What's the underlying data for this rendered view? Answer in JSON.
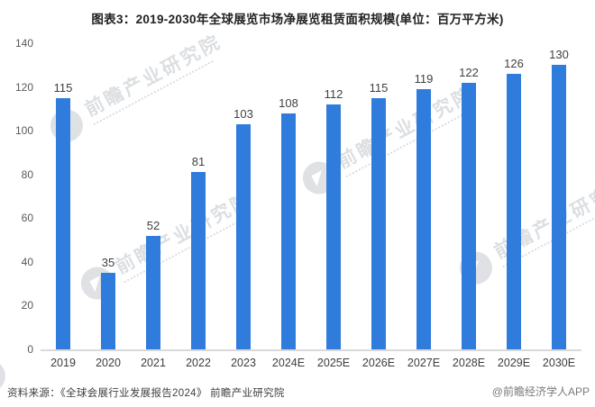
{
  "chart_data": {
    "type": "bar",
    "title": "图表3：2019-2030年全球展览市场净展览租赁面积规模(单位：百万平方米)",
    "categories": [
      "2019",
      "2020",
      "2021",
      "2022",
      "2023",
      "2024E",
      "2025E",
      "2026E",
      "2027E",
      "2028E",
      "2029E",
      "2030E"
    ],
    "values": [
      115,
      35,
      52,
      81,
      103,
      108,
      112,
      115,
      119,
      122,
      126,
      130
    ],
    "unit": "百万平方米",
    "xlabel": "",
    "ylabel": "",
    "ylim": [
      0,
      140
    ],
    "yticks": [
      0,
      20,
      40,
      60,
      80,
      100,
      120,
      140
    ],
    "grid": false,
    "legend": null,
    "bar_color": "#2F7CDC",
    "value_label_color": "#404040",
    "axis_label_color": "#595959",
    "axis_line_color": "#D9D9D9"
  },
  "watermark": {
    "text": "前瞻产业研究院",
    "logo_glyph": "◤"
  },
  "footer": {
    "source": "资料来源：《全球会展行业发展报告2024》 前瞻产业研究院",
    "credit": "@前瞻经济学人APP"
  }
}
